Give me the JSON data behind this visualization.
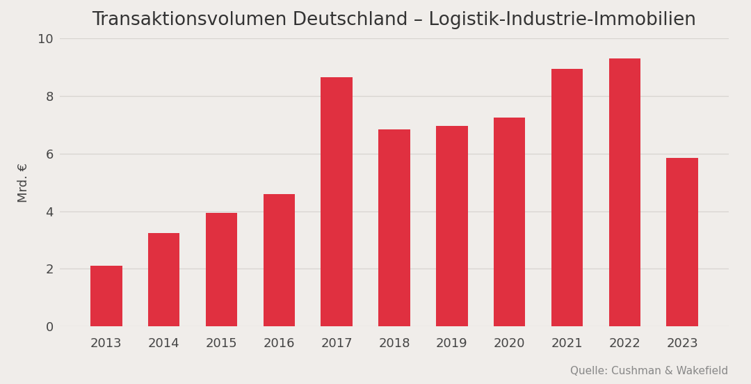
{
  "title": "Transaktionsvolumen Deutschland – Logistik-Industrie-Immobilien",
  "categories": [
    "2013",
    "2014",
    "2015",
    "2016",
    "2017",
    "2018",
    "2019",
    "2020",
    "2021",
    "2022",
    "2023"
  ],
  "values": [
    2.1,
    3.25,
    3.95,
    4.6,
    8.65,
    6.85,
    6.95,
    7.25,
    8.95,
    9.3,
    5.85
  ],
  "bar_color": "#E03040",
  "ylabel": "Mrd. €",
  "ylim": [
    0,
    10
  ],
  "yticks": [
    0,
    2,
    4,
    6,
    8,
    10
  ],
  "background_color": "#F0EDEA",
  "grid_color": "#D8D4D0",
  "source_text": "Quelle: Cushman & Wakefield",
  "title_fontsize": 19,
  "label_fontsize": 13,
  "tick_fontsize": 13,
  "source_fontsize": 11
}
